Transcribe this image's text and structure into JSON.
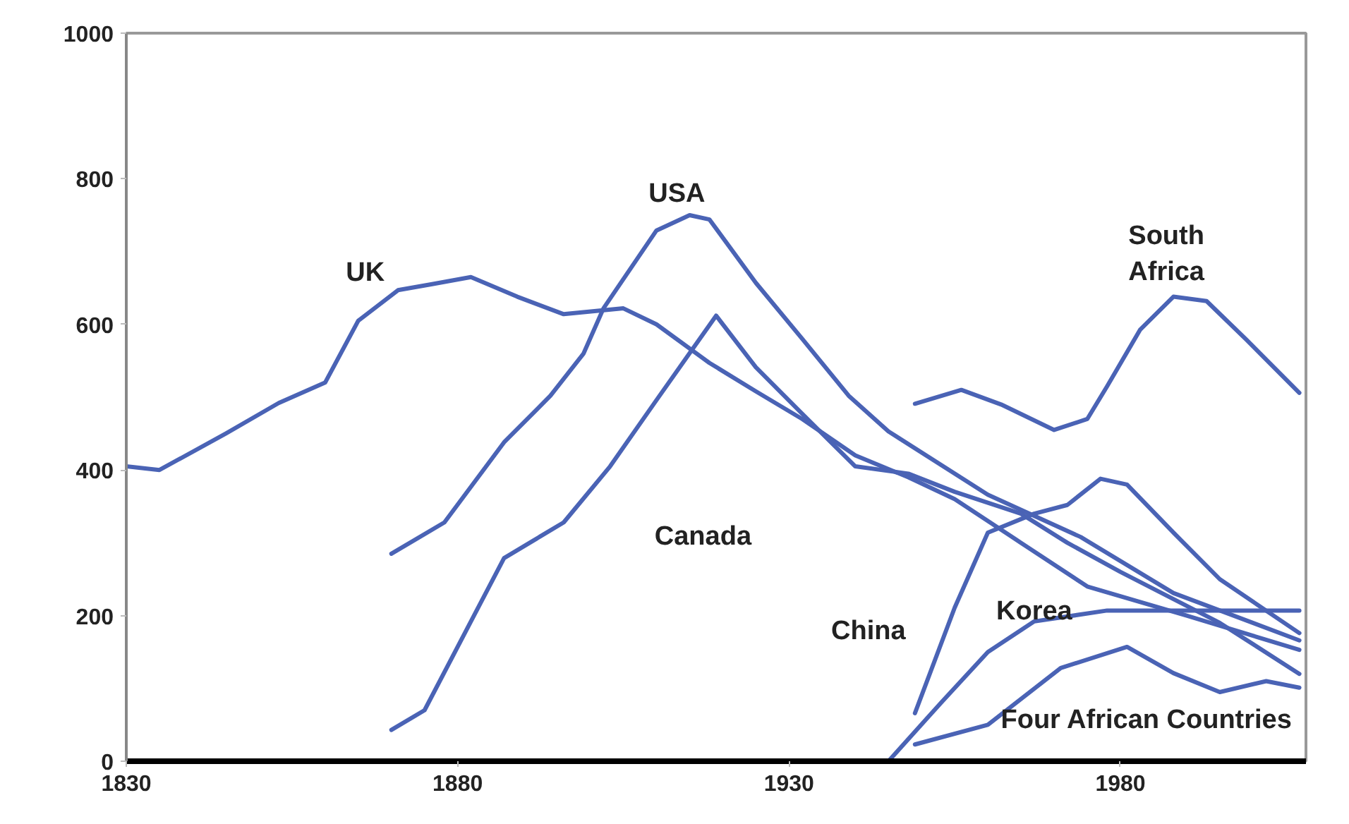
{
  "chart_data": {
    "type": "line",
    "xlim": [
      1830,
      2008
    ],
    "ylim": [
      0,
      1000
    ],
    "xticks": [
      1830,
      1880,
      1930,
      1980
    ],
    "yticks": [
      0,
      200,
      400,
      600,
      800,
      1000
    ],
    "grid": false,
    "legend": false,
    "marker": "none",
    "line_style": "solid",
    "series": [
      {
        "name": "UK",
        "color": "#4a63b5",
        "x": [
          1830,
          1835,
          1845,
          1853,
          1860,
          1865,
          1871,
          1876,
          1882,
          1889,
          1896,
          1905,
          1910,
          1918,
          1925,
          1932,
          1940,
          1948,
          1955,
          1965,
          1975,
          1990,
          2007
        ],
        "values": [
          405,
          400,
          450,
          492,
          520,
          605,
          647,
          655,
          665,
          638,
          614,
          622,
          600,
          547,
          508,
          470,
          420,
          390,
          360,
          300,
          240,
          200,
          153
        ]
      },
      {
        "name": "USA",
        "color": "#4a63b5",
        "x": [
          1870,
          1878,
          1887,
          1894,
          1899,
          1902,
          1910,
          1915,
          1918,
          1925,
          1932,
          1939,
          1945,
          1960,
          1974,
          1988,
          2007
        ],
        "values": [
          285,
          328,
          438,
          502,
          560,
          622,
          729,
          750,
          744,
          657,
          580,
          502,
          453,
          366,
          308,
          231,
          166
        ]
      },
      {
        "name": "Canada",
        "color": "#4a63b5",
        "x": [
          1870,
          1875,
          1882,
          1887,
          1896,
          1903,
          1910,
          1919,
          1925,
          1932,
          1940,
          1948,
          1955,
          1965,
          1972,
          1980,
          1995,
          2007
        ],
        "values": [
          43,
          70,
          192,
          279,
          328,
          405,
          496,
          612,
          541,
          477,
          405,
          395,
          370,
          340,
          300,
          260,
          190,
          120
        ]
      },
      {
        "name": "China",
        "color": "#4a63b5",
        "x": [
          1949,
          1955,
          1960,
          1967,
          1972,
          1977,
          1981,
          1988,
          1995,
          2007
        ],
        "values": [
          66,
          211,
          314,
          340,
          352,
          388,
          380,
          314,
          250,
          176
        ]
      },
      {
        "name": "Korea",
        "color": "#4a63b5",
        "x": [
          1945,
          1953,
          1960,
          1967,
          1978,
          1990,
          2007
        ],
        "values": [
          0,
          81,
          150,
          192,
          207,
          207,
          207
        ]
      },
      {
        "name": "Four African Countries",
        "color": "#4a63b5",
        "x": [
          1949,
          1960,
          1971,
          1981,
          1988,
          1995,
          2002,
          2007
        ],
        "values": [
          23,
          50,
          128,
          157,
          121,
          95,
          110,
          101
        ]
      },
      {
        "name": "South\nAfrica",
        "color": "#4a63b5",
        "x": [
          1949,
          1956,
          1962,
          1970,
          1975,
          1978,
          1983,
          1988,
          1993,
          1999,
          2007
        ],
        "values": [
          491,
          510,
          490,
          455,
          470,
          515,
          593,
          638,
          632,
          579,
          506
        ]
      }
    ]
  }
}
